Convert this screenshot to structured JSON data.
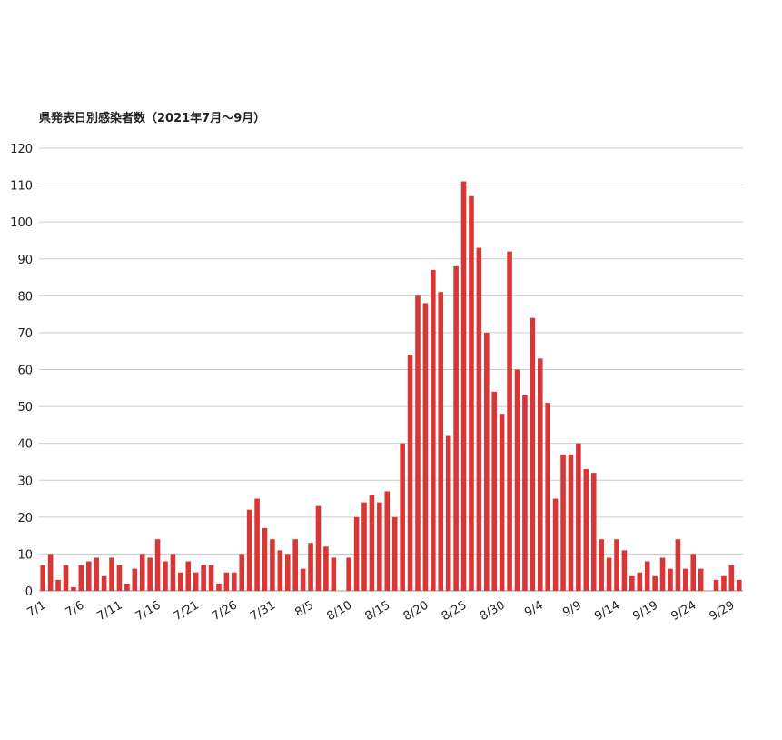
{
  "chart_data": {
    "type": "bar",
    "title": "県発表日別感染者数（2021年7月～9月）",
    "categories": [
      "7/1",
      null,
      null,
      null,
      null,
      "7/6",
      null,
      null,
      null,
      null,
      "7/11",
      null,
      null,
      null,
      null,
      "7/16",
      null,
      null,
      null,
      null,
      "7/21",
      null,
      null,
      null,
      null,
      "7/26",
      null,
      null,
      null,
      null,
      "7/31",
      null,
      null,
      null,
      null,
      "8/5",
      null,
      null,
      null,
      null,
      "8/10",
      null,
      null,
      null,
      null,
      "8/15",
      null,
      null,
      null,
      null,
      "8/20",
      null,
      null,
      null,
      null,
      "8/25",
      null,
      null,
      null,
      null,
      "8/30",
      null,
      null,
      null,
      null,
      "9/4",
      null,
      null,
      null,
      null,
      "9/9",
      null,
      null,
      null,
      null,
      "9/14",
      null,
      null,
      null,
      null,
      "9/19",
      null,
      null,
      null,
      null,
      "9/24",
      null,
      null,
      null,
      null,
      "9/29",
      null
    ],
    "values": [
      7,
      10,
      3,
      7,
      1,
      7,
      8,
      9,
      4,
      9,
      7,
      2,
      6,
      10,
      9,
      14,
      8,
      10,
      5,
      8,
      5,
      7,
      7,
      2,
      5,
      5,
      10,
      22,
      25,
      17,
      14,
      11,
      10,
      14,
      6,
      13,
      23,
      12,
      9,
      0,
      9,
      20,
      24,
      26,
      24,
      27,
      20,
      40,
      64,
      80,
      78,
      87,
      81,
      42,
      88,
      111,
      107,
      93,
      70,
      54,
      48,
      92,
      60,
      53,
      74,
      63,
      51,
      25,
      37,
      37,
      40,
      33,
      32,
      14,
      9,
      14,
      11,
      4,
      5,
      8,
      4,
      9,
      6,
      14,
      6,
      10,
      6,
      0,
      3,
      4,
      7,
      3
    ],
    "color": "#d93636",
    "ylim": [
      0,
      120
    ],
    "yticks": [
      0,
      10,
      20,
      30,
      40,
      50,
      60,
      70,
      80,
      90,
      100,
      110,
      120
    ],
    "grid": true
  }
}
